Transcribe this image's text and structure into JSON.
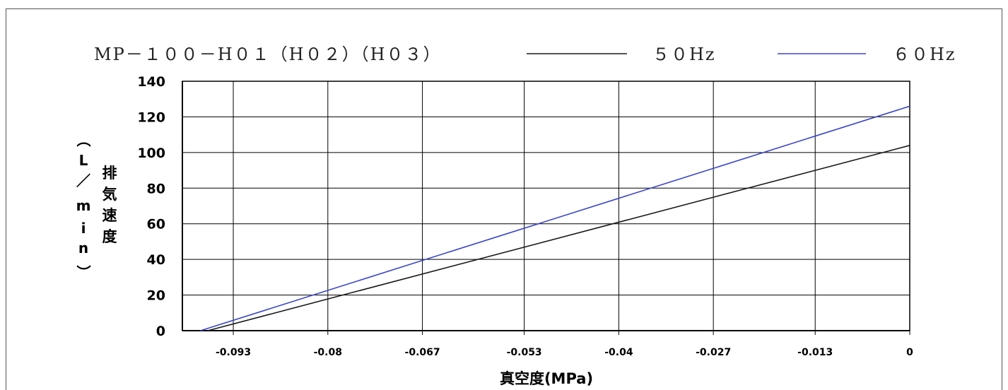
{
  "chart_data": {
    "type": "line",
    "title": "MP－１００－H０１（H０２）（H０３）",
    "xlabel": "真空度(MPa)",
    "ylabel_chars": [
      "排",
      "気",
      "速",
      "度"
    ],
    "ylabel_unit_chars": [
      "（",
      "L",
      "／",
      "m",
      "i",
      "n",
      "）"
    ],
    "xlim": [
      -0.1,
      0
    ],
    "ylim": [
      0,
      140
    ],
    "x_ticks": [
      -0.093,
      -0.08,
      -0.067,
      -0.053,
      -0.04,
      -0.027,
      -0.013,
      0
    ],
    "x_tick_labels": [
      "-0.093",
      "-0.08",
      "-0.067",
      "-0.053",
      "-0.04",
      "-0.027",
      "-0.013",
      "0"
    ],
    "y_ticks": [
      0,
      20,
      40,
      60,
      80,
      100,
      120,
      140
    ],
    "y_tick_labels": [
      "0",
      "20",
      "40",
      "60",
      "80",
      "100",
      "120",
      "140"
    ],
    "grid": true,
    "legend_position": "top",
    "series": [
      {
        "name": "５０Hz",
        "color": "#1a1a1a",
        "x": [
          -0.0965,
          0
        ],
        "y": [
          0,
          104
        ]
      },
      {
        "name": "６０Hz",
        "color": "#3b46c9",
        "x": [
          -0.0975,
          0
        ],
        "y": [
          0,
          126
        ]
      }
    ]
  }
}
